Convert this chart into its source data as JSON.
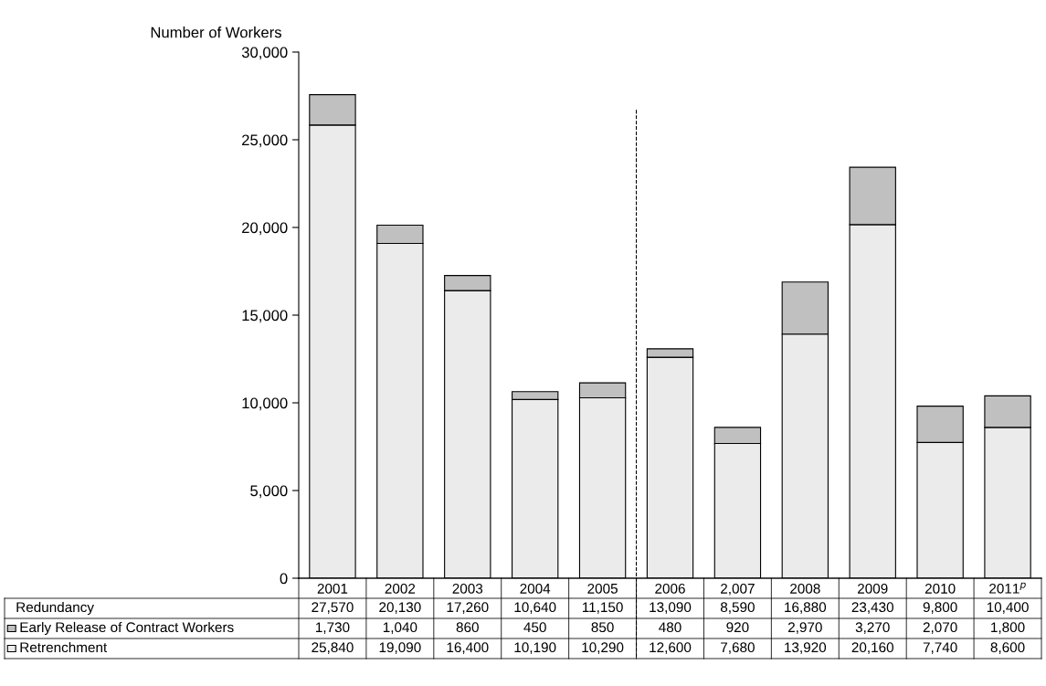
{
  "chart_data": {
    "type": "bar",
    "stacked": true,
    "ylabel": "Number of Workers",
    "categories": [
      "2001",
      "2002",
      "2003",
      "2004",
      "2005",
      "2006",
      "2,007",
      "2008",
      "2009",
      "2010",
      "2011$^{p}$"
    ],
    "series": [
      {
        "name": "Retrenchment",
        "color": "#ebebeb",
        "values": [
          25840,
          19090,
          16400,
          10190,
          10290,
          12600,
          7680,
          13920,
          20160,
          7740,
          8600
        ],
        "value_labels": [
          "25,840",
          "19,090",
          "16,400",
          "10,190",
          "10,290",
          "12,600",
          "7,680",
          "13,920",
          "20,160",
          "7,740",
          "8,600"
        ]
      },
      {
        "name": "Early Release of Contract Workers",
        "color": "#c0c0c0",
        "values": [
          1730,
          1040,
          860,
          450,
          850,
          480,
          920,
          2970,
          3270,
          2070,
          1800
        ],
        "value_labels": [
          "1,730",
          "1,040",
          "860",
          "450",
          "850",
          "480",
          "920",
          "2,970",
          "3,270",
          "2,070",
          "1,800"
        ]
      }
    ],
    "annotations": [
      "Redundancy",
      "27,570",
      "20,130",
      "17,260",
      "10,640",
      "11,150",
      "13,090",
      "8,590",
      "16,880",
      "23,430",
      "9,800",
      "10,400"
    ],
    "legend": "bottom",
    "grid": false,
    "ylim": [
      0,
      30000
    ],
    "yticks": [
      0,
      {
        "value": 5000,
        "label": "5,000"
      },
      {
        "value": 10000,
        "label": "10,000"
      },
      {
        "value": 15000,
        "label": "15,000"
      },
      {
        "value": 20000,
        "label": "20,000"
      },
      {
        "value": 25000,
        "label": "25,000"
      },
      {
        "value": 30000,
        "label": "30,000"
      }
    ]
  }
}
